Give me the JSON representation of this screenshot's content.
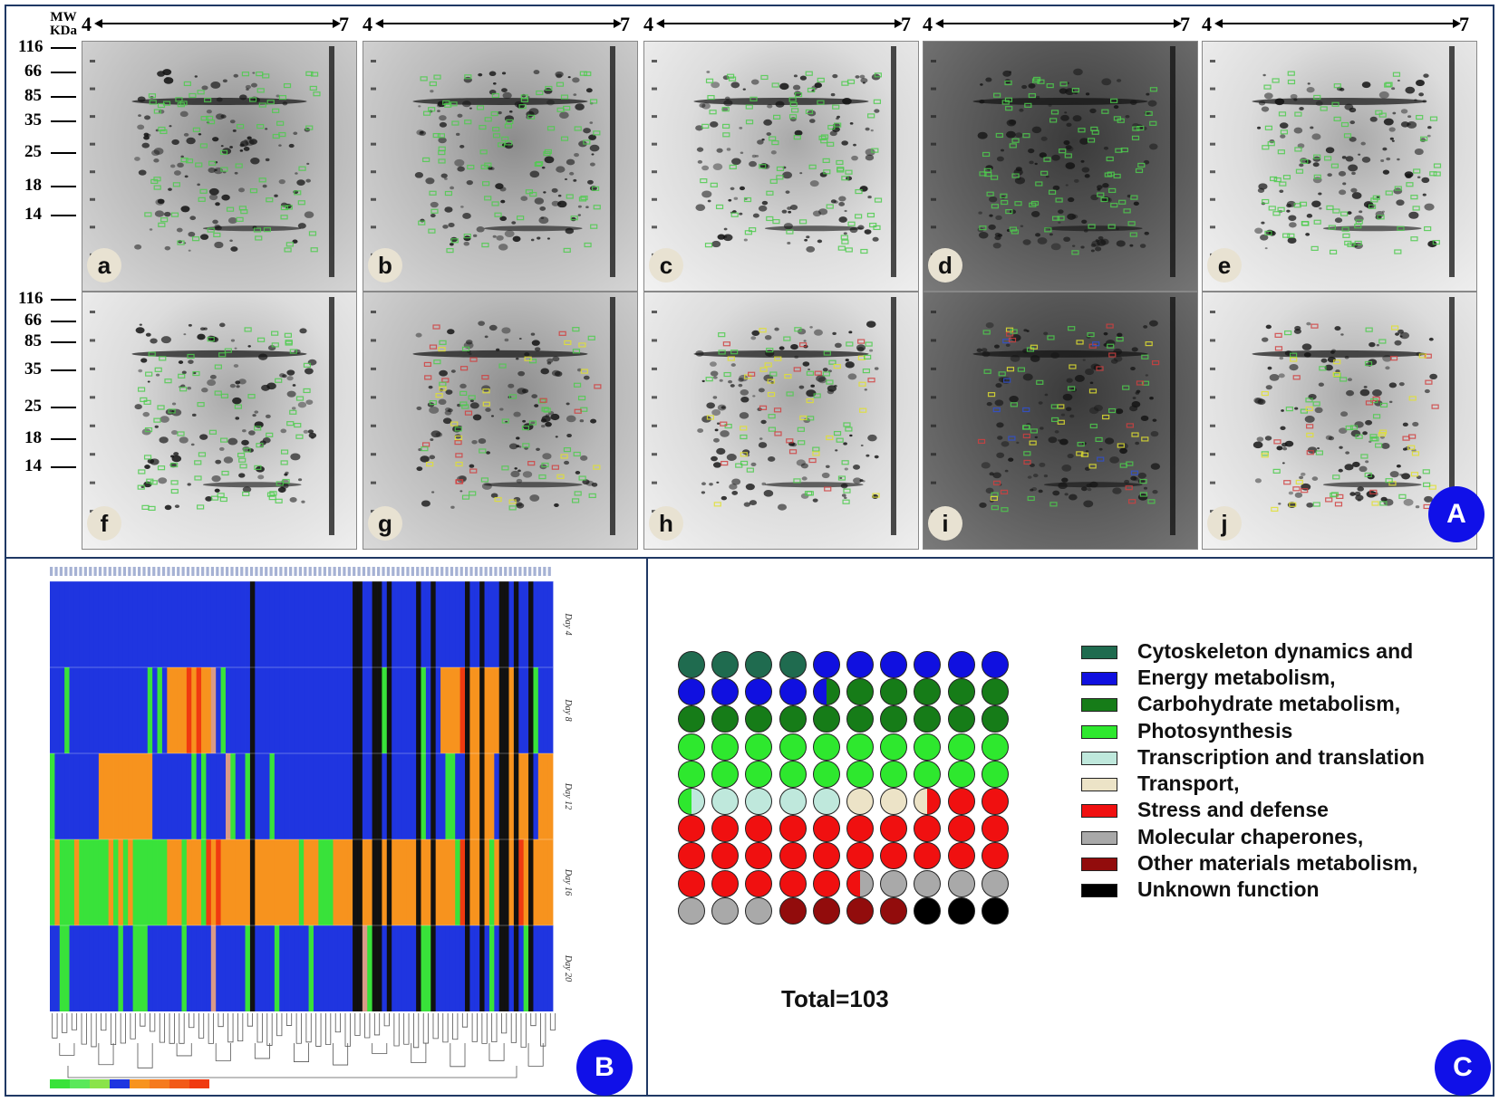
{
  "panels": {
    "A": {
      "label": "A"
    },
    "B": {
      "label": "B"
    },
    "C": {
      "label": "C"
    }
  },
  "gels": {
    "ph_start": "4",
    "ph_end": "7",
    "items": [
      {
        "label": "a",
        "tone": "mid"
      },
      {
        "label": "b",
        "tone": "mid"
      },
      {
        "label": "c",
        "tone": "light"
      },
      {
        "label": "d",
        "tone": "dark"
      },
      {
        "label": "e",
        "tone": "light"
      },
      {
        "label": "f",
        "tone": "light"
      },
      {
        "label": "g",
        "tone": "mid"
      },
      {
        "label": "h",
        "tone": "light"
      },
      {
        "label": "i",
        "tone": "dark"
      },
      {
        "label": "j",
        "tone": "light"
      }
    ]
  },
  "mw_axis": {
    "header_line1": "MW",
    "header_line2": "KDa",
    "markers": [
      "116",
      "66",
      "85",
      "35",
      "25",
      "18",
      "14"
    ]
  },
  "heatmap": {
    "row_labels": [
      "Day 4",
      "Day 8",
      "Day 12",
      "Day 16",
      "Day 20"
    ],
    "colors": {
      "blue": "#1f35e0",
      "green": "#39e23a",
      "orange": "#f7931e",
      "black": "#111111",
      "pink": "#d99a88",
      "red": "#f03a10"
    }
  },
  "waffle": {
    "total_label": "Total=103",
    "colors": {
      "cyto": "#1f6b4f",
      "energy": "#1010e0",
      "carb": "#167c18",
      "photo": "#2ee82e",
      "trans": "#bfe8dc",
      "transport": "#ece3c7",
      "stress": "#f01010",
      "chap": "#a9a9a9",
      "other": "#920c0c",
      "unknown": "#000000"
    }
  },
  "legend": [
    {
      "label": "Cytoskeleton dynamics and",
      "color": "#1f6b4f"
    },
    {
      "label": "Energy metabolism,",
      "color": "#1010e0"
    },
    {
      "label": "Carbohydrate metabolism,",
      "color": "#167c18"
    },
    {
      "label": "Photosynthesis",
      "color": "#2ee82e"
    },
    {
      "label": "Transcription and translation",
      "color": "#bfe8dc"
    },
    {
      "label": "Transport,",
      "color": "#ece3c7"
    },
    {
      "label": "Stress and defense",
      "color": "#f01010"
    },
    {
      "label": "Molecular chaperones,",
      "color": "#a9a9a9"
    },
    {
      "label": "Other materials metabolism,",
      "color": "#920c0c"
    },
    {
      "label": "Unknown function",
      "color": "#000000"
    }
  ]
}
